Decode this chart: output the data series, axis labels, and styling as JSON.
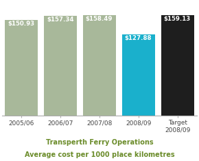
{
  "categories": [
    "2005/06",
    "2006/07",
    "2007/08",
    "2008/09",
    "Target\n2008/09"
  ],
  "values": [
    150.93,
    157.34,
    158.49,
    127.88,
    159.13
  ],
  "labels": [
    "$150.93",
    "$157.34",
    "$158.49",
    "$127.88",
    "$159.13"
  ],
  "bar_colors": [
    "#a8b89a",
    "#a8b89a",
    "#a8b89a",
    "#1ab0cc",
    "#1e1e1e"
  ],
  "label_colors": [
    "white",
    "white",
    "white",
    "white",
    "white"
  ],
  "title_line1": "Transperth Ferry Operations",
  "title_line2": "Average cost per 1000 place kilometres",
  "title_color": "#6b8c2a",
  "ylim": [
    0,
    175
  ],
  "background_color": "#ffffff"
}
